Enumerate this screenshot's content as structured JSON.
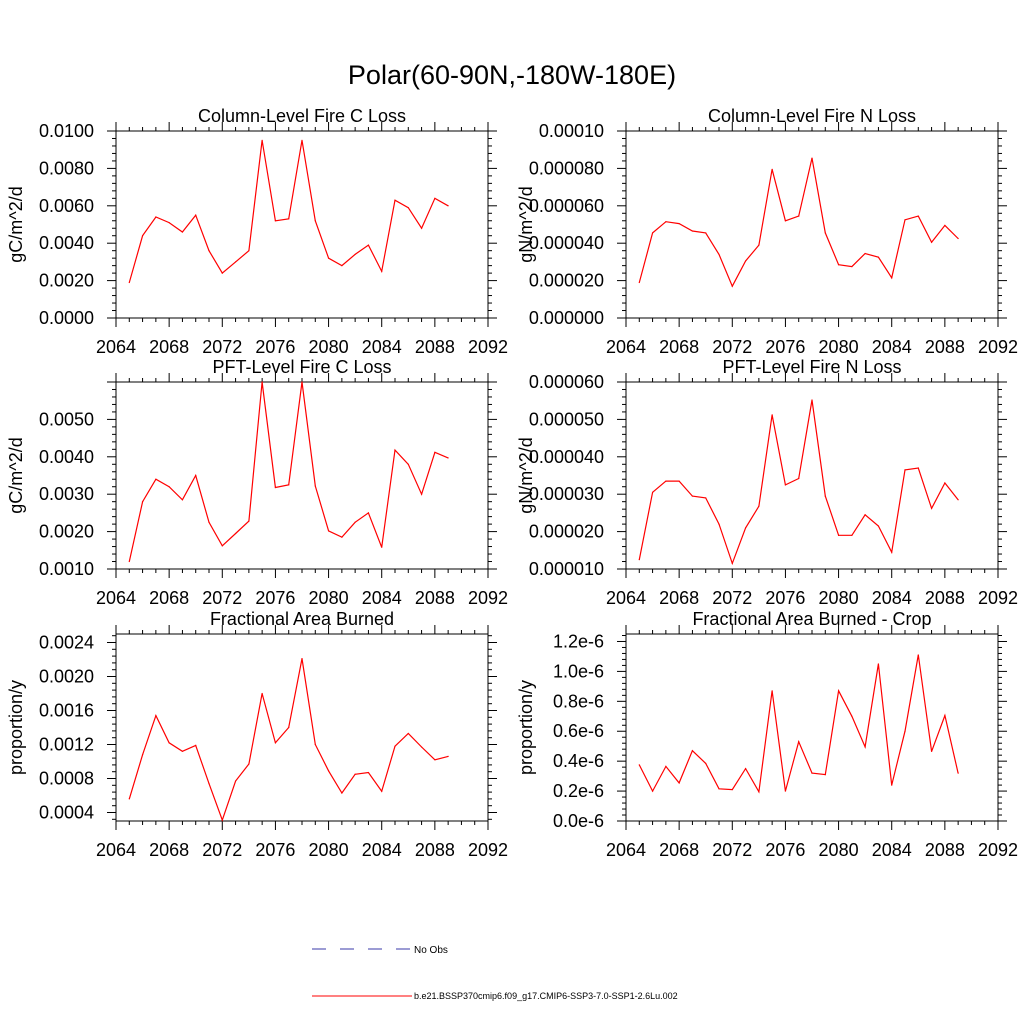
{
  "page": {
    "title": "Polar(60-90N,-180W-180E)"
  },
  "colors": {
    "model_line": "#ff0000",
    "obs_line": "#3a3aa8",
    "axis": "#000000"
  },
  "legend": {
    "obs_label": "No Obs",
    "model_label": "b.e21.BSSP370cmip6.f09_g17.CMIP6-SSP3-7.0-SSP1-2.6Lu.002"
  },
  "chart_data": [
    {
      "type": "line",
      "title": "Column-Level Fire C Loss",
      "ylabel": "gC/m^2/d",
      "xlim": [
        2064,
        2092
      ],
      "ylim": [
        0,
        0.01
      ],
      "xticks": [
        "2064",
        "2068",
        "2072",
        "2076",
        "2080",
        "2084",
        "2088",
        "2092"
      ],
      "yticks": [
        "0.0000",
        "0.0020",
        "0.0040",
        "0.0060",
        "0.0080",
        "0.0100"
      ],
      "x": [
        2065,
        2066,
        2067,
        2068,
        2069,
        2070,
        2071,
        2072,
        2073,
        2074,
        2075,
        2076,
        2077,
        2078,
        2079,
        2080,
        2081,
        2082,
        2083,
        2084,
        2085,
        2086,
        2087,
        2088,
        2089
      ],
      "series": [
        {
          "values": [
            0.0019,
            0.0044,
            0.0054,
            0.0051,
            0.0046,
            0.0055,
            0.0036,
            0.0024,
            0.003,
            0.0036,
            0.0095,
            0.0052,
            0.0053,
            0.0095,
            0.0052,
            0.0032,
            0.0028,
            0.0034,
            0.0039,
            0.0025,
            0.0063,
            0.0059,
            0.0048,
            0.0064,
            0.006
          ]
        }
      ]
    },
    {
      "type": "line",
      "title": "Column-Level Fire N Loss",
      "ylabel": "gN/m^2/d",
      "xlim": [
        2064,
        2092
      ],
      "ylim": [
        0,
        0.0001
      ],
      "xticks": [
        "2064",
        "2068",
        "2072",
        "2076",
        "2080",
        "2084",
        "2088",
        "2092"
      ],
      "yticks": [
        "0.000000",
        "0.000020",
        "0.000040",
        "0.000060",
        "0.000080",
        "0.00010"
      ],
      "x": [
        2065,
        2066,
        2067,
        2068,
        2069,
        2070,
        2071,
        2072,
        2073,
        2074,
        2075,
        2076,
        2077,
        2078,
        2079,
        2080,
        2081,
        2082,
        2083,
        2084,
        2085,
        2086,
        2087,
        2088,
        2089
      ],
      "series": [
        {
          "values": [
            1.9e-05,
            4.55e-05,
            5.15e-05,
            5.05e-05,
            4.65e-05,
            4.55e-05,
            3.4e-05,
            1.7e-05,
            3.05e-05,
            3.9e-05,
            7.95e-05,
            5.2e-05,
            5.45e-05,
            8.55e-05,
            4.55e-05,
            2.85e-05,
            2.75e-05,
            3.45e-05,
            3.25e-05,
            2.15e-05,
            5.25e-05,
            5.45e-05,
            4.05e-05,
            4.95e-05,
            4.25e-05
          ]
        }
      ]
    },
    {
      "type": "line",
      "title": "PFT-Level Fire C Loss",
      "ylabel": "gC/m^2/d",
      "xlim": [
        2064,
        2092
      ],
      "ylim": [
        0.001,
        0.006
      ],
      "xticks": [
        "2064",
        "2068",
        "2072",
        "2076",
        "2080",
        "2084",
        "2088",
        "2092"
      ],
      "yticks": [
        "0.0010",
        "0.0020",
        "0.0030",
        "0.0040",
        "0.0050"
      ],
      "x": [
        2065,
        2066,
        2067,
        2068,
        2069,
        2070,
        2071,
        2072,
        2073,
        2074,
        2075,
        2076,
        2077,
        2078,
        2079,
        2080,
        2081,
        2082,
        2083,
        2084,
        2085,
        2086,
        2087,
        2088,
        2089
      ],
      "series": [
        {
          "values": [
            0.0012,
            0.0028,
            0.0034,
            0.0032,
            0.00285,
            0.0035,
            0.00225,
            0.00162,
            0.00195,
            0.00228,
            0.006,
            0.00318,
            0.00325,
            0.006,
            0.00322,
            0.00202,
            0.00185,
            0.00225,
            0.0025,
            0.00158,
            0.00418,
            0.0038,
            0.003,
            0.00412,
            0.00397
          ]
        }
      ]
    },
    {
      "type": "line",
      "title": "PFT-Level Fire N Loss",
      "ylabel": "gN/m^2/d",
      "xlim": [
        2064,
        2092
      ],
      "ylim": [
        1e-05,
        6e-05
      ],
      "xticks": [
        "2064",
        "2068",
        "2072",
        "2076",
        "2080",
        "2084",
        "2088",
        "2092"
      ],
      "yticks": [
        "0.000010",
        "0.000020",
        "0.000030",
        "0.000040",
        "0.000050",
        "0.000060"
      ],
      "x": [
        2065,
        2066,
        2067,
        2068,
        2069,
        2070,
        2071,
        2072,
        2073,
        2074,
        2075,
        2076,
        2077,
        2078,
        2079,
        2080,
        2081,
        2082,
        2083,
        2084,
        2085,
        2086,
        2087,
        2088,
        2089
      ],
      "series": [
        {
          "values": [
            1.25e-05,
            3.05e-05,
            3.35e-05,
            3.35e-05,
            2.95e-05,
            2.9e-05,
            2.2e-05,
            1.15e-05,
            2.1e-05,
            2.68e-05,
            5.12e-05,
            3.25e-05,
            3.42e-05,
            5.52e-05,
            2.95e-05,
            1.9e-05,
            1.9e-05,
            2.45e-05,
            2.15e-05,
            1.45e-05,
            3.65e-05,
            3.7e-05,
            2.62e-05,
            3.3e-05,
            2.85e-05
          ]
        }
      ]
    },
    {
      "type": "line",
      "title": "Fractional Area Burned",
      "ylabel": "proportion/y",
      "xlim": [
        2064,
        2092
      ],
      "ylim": [
        0.0003,
        0.0025
      ],
      "xticks": [
        "2064",
        "2068",
        "2072",
        "2076",
        "2080",
        "2084",
        "2088",
        "2092"
      ],
      "yticks": [
        "0.0004",
        "0.0008",
        "0.0012",
        "0.0016",
        "0.0020",
        "0.0024"
      ],
      "x": [
        2065,
        2066,
        2067,
        2068,
        2069,
        2070,
        2071,
        2072,
        2073,
        2074,
        2075,
        2076,
        2077,
        2078,
        2079,
        2080,
        2081,
        2082,
        2083,
        2084,
        2085,
        2086,
        2087,
        2088,
        2089
      ],
      "series": [
        {
          "values": [
            0.00056,
            0.00108,
            0.00154,
            0.00122,
            0.00112,
            0.00119,
            0.00074,
            0.00031,
            0.00077,
            0.00097,
            0.0018,
            0.00122,
            0.0014,
            0.00221,
            0.0012,
            0.00089,
            0.00063,
            0.00085,
            0.00087,
            0.00065,
            0.00118,
            0.00133,
            0.00117,
            0.00102,
            0.00106
          ]
        }
      ]
    },
    {
      "type": "line",
      "title": "Fractional Area Burned - Crop",
      "ylabel": "proportion/y",
      "xlim": [
        2064,
        2092
      ],
      "ylim": [
        0,
        1.25e-06
      ],
      "xticks": [
        "2064",
        "2068",
        "2072",
        "2076",
        "2080",
        "2084",
        "2088",
        "2092"
      ],
      "yticks": [
        "0.0e-6",
        "0.2e-6",
        "0.4e-6",
        "0.6e-6",
        "0.8e-6",
        "1.0e-6",
        "1.2e-6"
      ],
      "x": [
        2065,
        2066,
        2067,
        2068,
        2069,
        2070,
        2071,
        2072,
        2073,
        2074,
        2075,
        2076,
        2077,
        2078,
        2079,
        2080,
        2081,
        2082,
        2083,
        2084,
        2085,
        2086,
        2087,
        2088,
        2089
      ],
      "series": [
        {
          "values": [
            3.75e-07,
            2e-07,
            3.65e-07,
            2.55e-07,
            4.7e-07,
            3.85e-07,
            2.15e-07,
            2.1e-07,
            3.5e-07,
            1.95e-07,
            8.7e-07,
            2e-07,
            5.3e-07,
            3.2e-07,
            3.1e-07,
            8.7e-07,
            7e-07,
            4.95e-07,
            1.05e-06,
            2.4e-07,
            6e-07,
            1.11e-06,
            4.65e-07,
            7.05e-07,
            3.2e-07
          ]
        }
      ]
    }
  ]
}
